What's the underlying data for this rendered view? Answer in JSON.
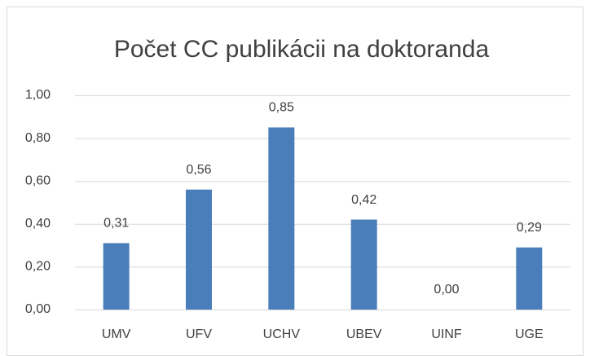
{
  "chart_data": {
    "type": "bar",
    "title": "Počet CC publikácii na doktoranda",
    "categories": [
      "UMV",
      "UFV",
      "UCHV",
      "UBEV",
      "UINF",
      "UGE"
    ],
    "values": [
      0.31,
      0.56,
      0.85,
      0.42,
      0.0,
      0.29
    ],
    "value_labels": [
      "0,31",
      "0,56",
      "0,85",
      "0,42",
      "0,00",
      "0,29"
    ],
    "color": "#4a7ebb",
    "ylim": [
      0,
      1
    ],
    "yticks": [
      {
        "value": 0,
        "label": "0,00"
      },
      {
        "value": 0.2,
        "label": "0,20"
      },
      {
        "value": 0.4,
        "label": "0,40"
      },
      {
        "value": 0.6,
        "label": "0,60"
      },
      {
        "value": 0.8,
        "label": "0,80"
      },
      {
        "value": 1,
        "label": "1,00"
      }
    ],
    "grid": true
  }
}
